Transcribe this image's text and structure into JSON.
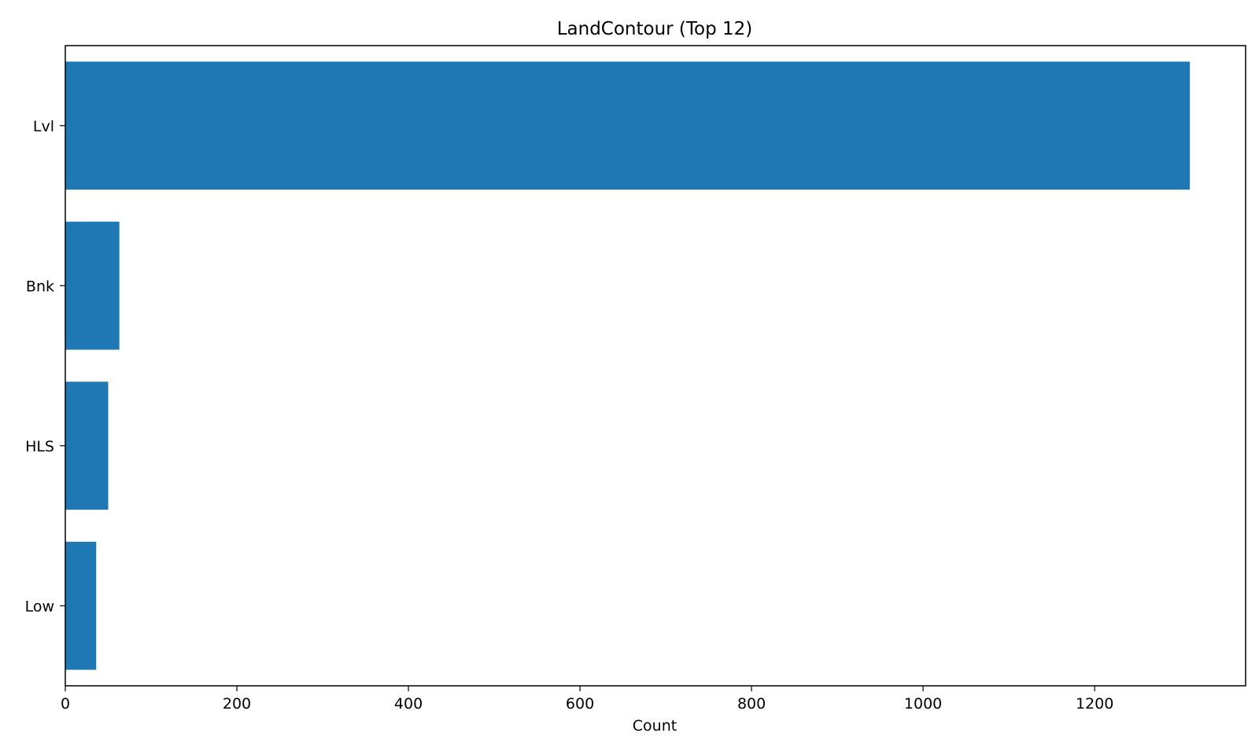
{
  "chart_data": {
    "type": "bar",
    "orientation": "horizontal",
    "title": "LandContour (Top 12)",
    "xlabel": "Count",
    "ylabel": "",
    "categories": [
      "Lvl",
      "Bnk",
      "HLS",
      "Low"
    ],
    "values": [
      1311,
      63,
      50,
      36
    ],
    "xlim": [
      0,
      1376
    ],
    "xticks": [
      "0",
      "200",
      "400",
      "600",
      "800",
      "1000",
      "1200"
    ],
    "grid": false,
    "legend": "none",
    "bar_color": "#1f77b4"
  }
}
